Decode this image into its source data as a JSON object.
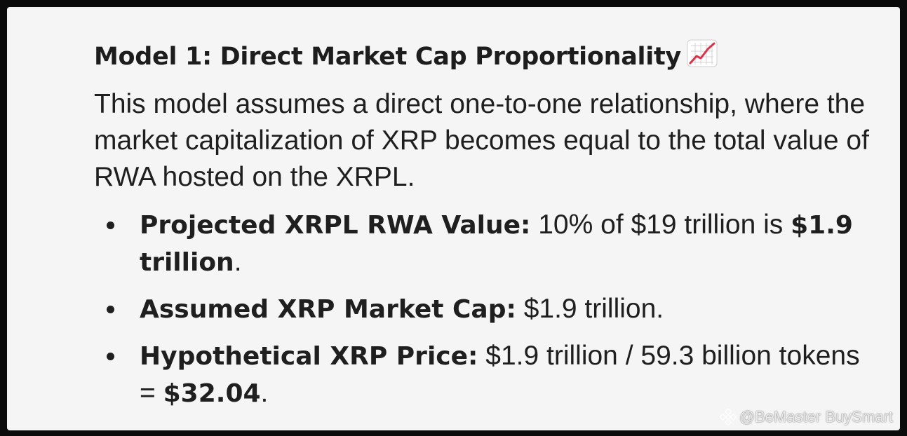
{
  "heading": {
    "text": "Model 1: Direct Market Cap Proportionality",
    "emoji_icon": "chart-increasing-icon"
  },
  "intro": "This model assumes a direct one-to-one relationship, where the market capitalization of XRP becomes equal to the total value of RWA hosted on the XRPL.",
  "bullets": [
    {
      "label": "Projected XRPL RWA Value:",
      "text": " 10% of $19 trillion is ",
      "bold_value": "$1.9 trillion",
      "suffix": "."
    },
    {
      "label": "Assumed XRP Market Cap:",
      "text": " $1.9 trillion."
    },
    {
      "label": "Hypothetical XRP Price:",
      "text": " $1.9 trillion / 59.3 billion tokens = ",
      "bold_value": "$32.04",
      "suffix": "."
    }
  ],
  "watermark": {
    "text": "@BeMaster BuySmart",
    "icon": "binance-logo-icon"
  },
  "colors": {
    "background": "#0b0b0b",
    "card": "#f5f5f5",
    "text": "#1f1f1f",
    "emoji_line": "#e0314b"
  }
}
